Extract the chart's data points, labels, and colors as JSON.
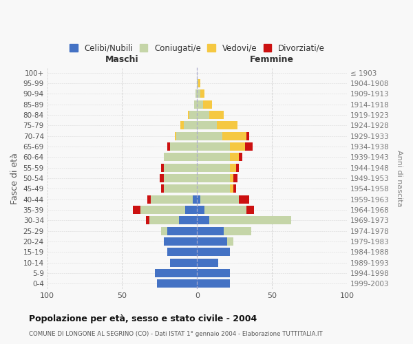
{
  "age_groups": [
    "0-4",
    "5-9",
    "10-14",
    "15-19",
    "20-24",
    "25-29",
    "30-34",
    "35-39",
    "40-44",
    "45-49",
    "50-54",
    "55-59",
    "60-64",
    "65-69",
    "70-74",
    "75-79",
    "80-84",
    "85-89",
    "90-94",
    "95-99",
    "100+"
  ],
  "birth_years": [
    "1999-2003",
    "1994-1998",
    "1989-1993",
    "1984-1988",
    "1979-1983",
    "1974-1978",
    "1969-1973",
    "1964-1968",
    "1959-1963",
    "1954-1958",
    "1949-1953",
    "1944-1948",
    "1939-1943",
    "1934-1938",
    "1929-1933",
    "1924-1928",
    "1919-1923",
    "1914-1918",
    "1909-1913",
    "1904-1908",
    "≤ 1903"
  ],
  "males": {
    "celibe": [
      27,
      28,
      18,
      20,
      22,
      20,
      12,
      8,
      3,
      0,
      0,
      0,
      0,
      0,
      0,
      0,
      0,
      0,
      0,
      0,
      0
    ],
    "coniugato": [
      0,
      0,
      0,
      0,
      0,
      4,
      20,
      30,
      28,
      22,
      22,
      22,
      22,
      18,
      14,
      9,
      5,
      2,
      1,
      0,
      0
    ],
    "vedovo": [
      0,
      0,
      0,
      0,
      0,
      0,
      0,
      0,
      0,
      0,
      0,
      0,
      0,
      0,
      1,
      2,
      1,
      0,
      0,
      0,
      0
    ],
    "divorziato": [
      0,
      0,
      0,
      0,
      0,
      0,
      2,
      5,
      2,
      2,
      3,
      2,
      0,
      2,
      0,
      0,
      0,
      0,
      0,
      0,
      0
    ]
  },
  "females": {
    "nubile": [
      22,
      22,
      14,
      22,
      20,
      18,
      8,
      5,
      2,
      0,
      0,
      0,
      0,
      0,
      0,
      0,
      0,
      0,
      0,
      0,
      0
    ],
    "coniugata": [
      0,
      0,
      0,
      0,
      4,
      18,
      55,
      28,
      26,
      22,
      22,
      22,
      22,
      22,
      17,
      13,
      8,
      4,
      2,
      1,
      0
    ],
    "vedova": [
      0,
      0,
      0,
      0,
      0,
      0,
      0,
      0,
      0,
      2,
      2,
      4,
      6,
      10,
      16,
      14,
      10,
      6,
      3,
      1,
      0
    ],
    "divorziata": [
      0,
      0,
      0,
      0,
      0,
      0,
      0,
      5,
      7,
      2,
      3,
      2,
      2,
      5,
      2,
      0,
      0,
      0,
      0,
      0,
      0
    ]
  },
  "colors": {
    "celibe": "#4472c4",
    "coniugato": "#c5d5a8",
    "vedovo": "#f5c842",
    "divorziato": "#cc1111"
  },
  "xlim": 100,
  "title": "Popolazione per età, sesso e stato civile - 2004",
  "subtitle": "COMUNE DI LONGONE AL SEGRINO (CO) - Dati ISTAT 1° gennaio 2004 - Elaborazione TUTTITALIA.IT",
  "ylabel": "Fasce di età",
  "ylabel_right": "Anni di nascita",
  "xlabel_maschi": "Maschi",
  "xlabel_femmine": "Femmine",
  "legend_labels": [
    "Celibi/Nubili",
    "Coniugati/e",
    "Vedovi/e",
    "Divorziati/e"
  ],
  "bg_color": "#f8f8f8",
  "grid_color": "#cccccc"
}
